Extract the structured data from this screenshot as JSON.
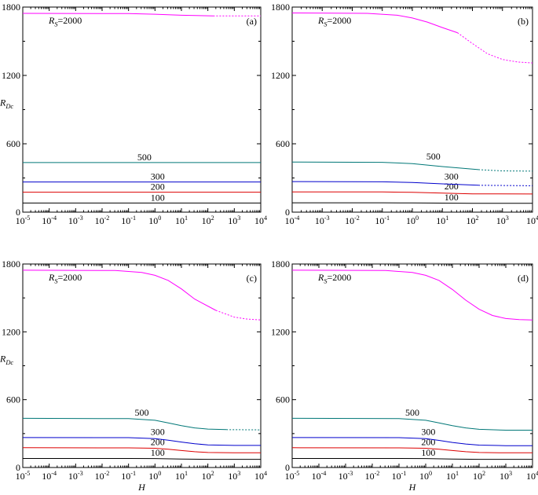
{
  "figure": {
    "shared_xlabel": "H",
    "shared_ylabel_main": "R",
    "shared_ylabel_sub": "Dc",
    "rs_label_main": "R",
    "rs_label_sub": "S",
    "rs_label_value": "=2000"
  },
  "chart_data": [
    {
      "panel": "(a)",
      "type": "line",
      "title": "",
      "xscale": "log",
      "xlim": [
        1e-05,
        10000
      ],
      "ylim": [
        0,
        1800
      ],
      "xticks": [
        -5,
        -4,
        -3,
        -2,
        -1,
        0,
        1,
        2,
        3,
        4
      ],
      "yticks": [
        0,
        600,
        1200,
        1800
      ],
      "xlabel": "",
      "ylabel": "R_Dc",
      "series": [
        {
          "name": "100",
          "label": "100",
          "color": "#000000",
          "x": [
            -5,
            4
          ],
          "y": [
            80,
            80
          ],
          "dashed_from": null,
          "label_at": [
            0.1,
            80
          ]
        },
        {
          "name": "200",
          "label": "200",
          "color": "#dd0000",
          "x": [
            -5,
            4
          ],
          "y": [
            175,
            175
          ],
          "dashed_from": null,
          "label_at": [
            0.1,
            175
          ]
        },
        {
          "name": "300",
          "label": "300",
          "color": "#0000cc",
          "x": [
            -5,
            4
          ],
          "y": [
            265,
            265
          ],
          "dashed_from": null,
          "label_at": [
            0.1,
            265
          ]
        },
        {
          "name": "500",
          "label": "500",
          "color": "#007777",
          "x": [
            -5,
            4
          ],
          "y": [
            435,
            435
          ],
          "dashed_from": null,
          "label_at": [
            -0.4,
            435
          ]
        },
        {
          "name": "2000",
          "label": "",
          "color": "#ff00ff",
          "x": [
            -5,
            -1,
            0,
            1,
            2.2,
            4
          ],
          "y": [
            1745,
            1743,
            1737,
            1728,
            1722,
            1722
          ],
          "dashed_from": 2.2,
          "label_at": null
        }
      ]
    },
    {
      "panel": "(b)",
      "type": "line",
      "title": "",
      "xscale": "log",
      "xlim": [
        0.0001,
        10000
      ],
      "ylim": [
        0,
        1800
      ],
      "xticks": [
        -4,
        -3,
        -2,
        -1,
        0,
        1,
        2,
        3,
        4
      ],
      "yticks": [
        0,
        600,
        1200,
        1800
      ],
      "xlabel": "",
      "ylabel": "",
      "series": [
        {
          "name": "100",
          "label": "100",
          "color": "#000000",
          "x": [
            -4,
            -1,
            0,
            1,
            2,
            4
          ],
          "y": [
            82,
            82,
            81,
            79,
            78,
            78
          ],
          "dashed_from": null,
          "label_at": [
            1.3,
            82
          ]
        },
        {
          "name": "200",
          "label": "200",
          "color": "#dd0000",
          "x": [
            -4,
            -1,
            0,
            1,
            2,
            4
          ],
          "y": [
            178,
            177,
            174,
            167,
            161,
            159
          ],
          "dashed_from": null,
          "label_at": [
            1.3,
            178
          ]
        },
        {
          "name": "300",
          "label": "300",
          "color": "#0000cc",
          "x": [
            -4,
            -1,
            0,
            1,
            2.2,
            4
          ],
          "y": [
            268,
            266,
            260,
            248,
            236,
            232
          ],
          "dashed_from": 2.2,
          "label_at": [
            1.3,
            266
          ]
        },
        {
          "name": "500",
          "label": "500",
          "color": "#007777",
          "x": [
            -4,
            -1,
            0,
            1,
            2.2,
            3,
            4
          ],
          "y": [
            440,
            437,
            426,
            400,
            373,
            362,
            360
          ],
          "dashed_from": 2.2,
          "label_at": [
            0.7,
            440
          ]
        },
        {
          "name": "2000",
          "label": "",
          "color": "#ff00ff",
          "x": [
            -4,
            -1.5,
            -0.5,
            0,
            0.5,
            1,
            1.5,
            2,
            2.5,
            3,
            3.5,
            4
          ],
          "y": [
            1748,
            1745,
            1728,
            1704,
            1668,
            1620,
            1575,
            1480,
            1390,
            1340,
            1318,
            1310
          ],
          "dashed_from": 1.5,
          "label_at": null
        }
      ]
    },
    {
      "panel": "(c)",
      "type": "line",
      "title": "",
      "xscale": "log",
      "xlim": [
        1e-05,
        10000
      ],
      "ylim": [
        0,
        1800
      ],
      "xticks": [
        -5,
        -4,
        -3,
        -2,
        -1,
        0,
        1,
        2,
        3,
        4
      ],
      "yticks": [
        0,
        600,
        1200,
        1800
      ],
      "xlabel": "H",
      "ylabel": "R_Dc",
      "series": [
        {
          "name": "100",
          "label": "100",
          "color": "#000000",
          "x": [
            -5,
            -1,
            0,
            1,
            2,
            4
          ],
          "y": [
            80,
            80,
            79,
            75,
            72,
            72
          ],
          "dashed_from": null,
          "label_at": [
            0.1,
            84
          ]
        },
        {
          "name": "200",
          "label": "200",
          "color": "#dd0000",
          "x": [
            -5,
            -1,
            0,
            0.5,
            1,
            1.5,
            2,
            3,
            4
          ],
          "y": [
            175,
            174,
            170,
            162,
            150,
            140,
            133,
            130,
            130
          ],
          "dashed_from": null,
          "label_at": [
            0.1,
            178
          ]
        },
        {
          "name": "300",
          "label": "300",
          "color": "#0000cc",
          "x": [
            -5,
            -1,
            0,
            0.5,
            1,
            1.5,
            2,
            3,
            4
          ],
          "y": [
            265,
            264,
            255,
            242,
            225,
            210,
            200,
            195,
            195
          ],
          "dashed_from": null,
          "label_at": [
            0.1,
            268
          ]
        },
        {
          "name": "500",
          "label": "500",
          "color": "#007777",
          "x": [
            -5,
            -1,
            0,
            0.5,
            1,
            1.5,
            2,
            2.7,
            4
          ],
          "y": [
            435,
            432,
            418,
            395,
            370,
            350,
            340,
            335,
            333
          ],
          "dashed_from": 2.7,
          "label_at": [
            -0.5,
            437
          ]
        },
        {
          "name": "2000",
          "label": "",
          "color": "#ff00ff",
          "x": [
            -5,
            -1.5,
            -0.5,
            0,
            0.5,
            1,
            1.5,
            2.3,
            3,
            3.5,
            4
          ],
          "y": [
            1745,
            1742,
            1725,
            1700,
            1655,
            1580,
            1490,
            1390,
            1330,
            1312,
            1305
          ],
          "dashed_from": 2.3,
          "label_at": null
        }
      ]
    },
    {
      "panel": "(d)",
      "type": "line",
      "title": "",
      "xscale": "log",
      "xlim": [
        1e-05,
        10000
      ],
      "ylim": [
        0,
        1800
      ],
      "xticks": [
        -5,
        -4,
        -3,
        -2,
        -1,
        0,
        1,
        2,
        3,
        4
      ],
      "yticks": [
        0,
        600,
        1200,
        1800
      ],
      "xlabel": "H",
      "ylabel": "",
      "series": [
        {
          "name": "100",
          "label": "100",
          "color": "#000000",
          "x": [
            -5,
            -1,
            0,
            1,
            2,
            4
          ],
          "y": [
            80,
            80,
            79,
            75,
            72,
            72
          ],
          "dashed_from": null,
          "label_at": [
            0.1,
            84
          ]
        },
        {
          "name": "200",
          "label": "200",
          "color": "#dd0000",
          "x": [
            -5,
            -1,
            0,
            0.5,
            1,
            1.5,
            2,
            3,
            4
          ],
          "y": [
            175,
            174,
            170,
            162,
            150,
            140,
            133,
            130,
            130
          ],
          "dashed_from": null,
          "label_at": [
            0.1,
            178
          ]
        },
        {
          "name": "300",
          "label": "300",
          "color": "#0000cc",
          "x": [
            -5,
            -1,
            0,
            0.5,
            1,
            1.5,
            2,
            3,
            4
          ],
          "y": [
            265,
            264,
            255,
            240,
            222,
            208,
            198,
            193,
            193
          ],
          "dashed_from": null,
          "label_at": [
            0.1,
            268
          ]
        },
        {
          "name": "500",
          "label": "500",
          "color": "#007777",
          "x": [
            -5,
            -1,
            0,
            0.5,
            1,
            1.5,
            2,
            3,
            4
          ],
          "y": [
            435,
            432,
            418,
            395,
            370,
            350,
            338,
            330,
            330
          ],
          "dashed_from": null,
          "label_at": [
            -0.5,
            437
          ]
        },
        {
          "name": "2000",
          "label": "",
          "color": "#ff00ff",
          "x": [
            -5,
            -1.5,
            -0.5,
            0,
            0.5,
            1,
            1.5,
            2,
            2.5,
            3,
            3.5,
            4
          ],
          "y": [
            1745,
            1742,
            1725,
            1700,
            1655,
            1575,
            1480,
            1400,
            1345,
            1318,
            1308,
            1305
          ],
          "dashed_from": null,
          "label_at": null
        }
      ]
    }
  ]
}
